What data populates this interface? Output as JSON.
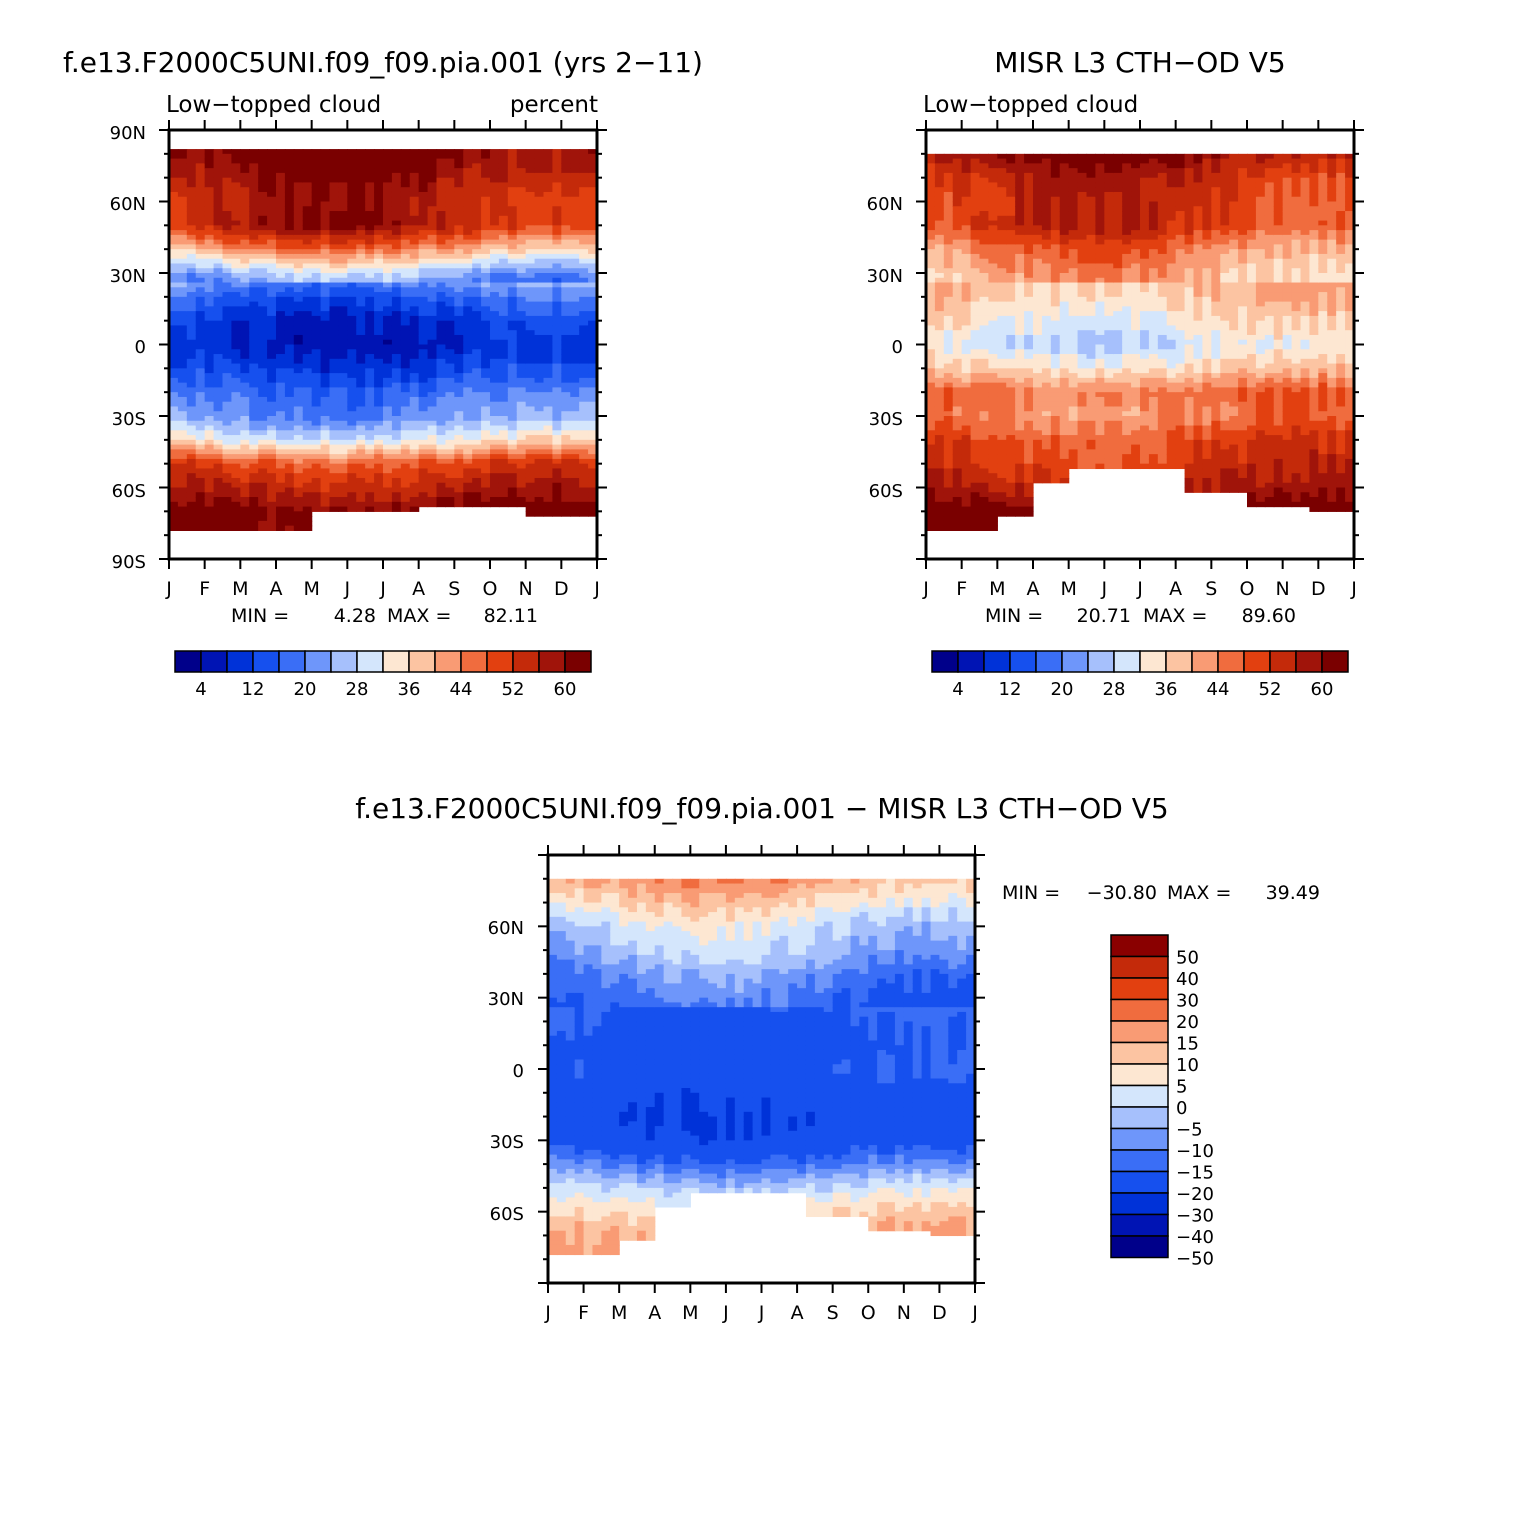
{
  "palette_abs": [
    "#00008a",
    "#0014b4",
    "#0032d8",
    "#1650ee",
    "#3a6ef6",
    "#6e96fa",
    "#a6c0fc",
    "#d4e6fc",
    "#fde7d2",
    "#fcc4a2",
    "#f99b74",
    "#f06c3e",
    "#e24010",
    "#c42a0a",
    "#a0140a",
    "#7a0000"
  ],
  "palette_diff": [
    "#00008a",
    "#0014b4",
    "#0032d8",
    "#1650ee",
    "#3a6ef6",
    "#6e96fa",
    "#a6c0fc",
    "#d4e6fc",
    "#fde7d2",
    "#fcc4a2",
    "#f99b74",
    "#f06c3e",
    "#e24010",
    "#c42a0a",
    "#8a0000"
  ],
  "chart_data": [
    {
      "type": "heatmap",
      "title": "f.e13.F2000C5UNI.f09_f09.pia.001 (yrs 2-11)",
      "left_subtitle": "Low-topped cloud",
      "right_subtitle": "percent",
      "x_ticks": [
        "J",
        "F",
        "M",
        "A",
        "M",
        "J",
        "J",
        "A",
        "S",
        "O",
        "N",
        "D",
        "J"
      ],
      "y_ticks": [
        "90N",
        "60N",
        "30N",
        "0",
        "30S",
        "60S",
        "90S"
      ],
      "ylim": [
        -90,
        90
      ],
      "min_label": "MIN =",
      "min_value": "4.28",
      "max_label": "MAX =",
      "max_value": "82.11",
      "colorbar_levels": [
        4,
        8,
        12,
        16,
        20,
        24,
        28,
        32,
        36,
        40,
        44,
        48,
        52,
        56,
        60
      ],
      "colorbar_labels": [
        "4",
        "12",
        "20",
        "28",
        "36",
        "44",
        "52",
        "60"
      ],
      "latitude_profile": {
        "lat": [
          80,
          70,
          60,
          50,
          40,
          30,
          20,
          10,
          0,
          -10,
          -20,
          -30,
          -40,
          -50,
          -60,
          -70,
          -78
        ],
        "value": [
          62,
          58,
          55,
          56,
          42,
          25,
          16,
          10,
          8,
          12,
          18,
          22,
          32,
          50,
          56,
          62,
          62
        ]
      }
    },
    {
      "type": "heatmap",
      "title": "MISR L3 CTH-OD V5",
      "left_subtitle": "Low-topped cloud",
      "x_ticks": [
        "J",
        "F",
        "M",
        "A",
        "M",
        "J",
        "J",
        "A",
        "S",
        "O",
        "N",
        "D",
        "J"
      ],
      "y_ticks": [
        "60N",
        "30N",
        "0",
        "30S",
        "60S"
      ],
      "ylim": [
        -90,
        90
      ],
      "min_label": "MIN =",
      "min_value": "20.71",
      "max_label": "MAX =",
      "max_value": "89.60",
      "colorbar_levels": [
        4,
        8,
        12,
        16,
        20,
        24,
        28,
        32,
        36,
        40,
        44,
        48,
        52,
        56,
        60
      ],
      "colorbar_labels": [
        "4",
        "12",
        "20",
        "28",
        "36",
        "44",
        "52",
        "60"
      ],
      "latitude_profile": {
        "lat": [
          80,
          70,
          60,
          50,
          40,
          30,
          20,
          10,
          0,
          -10,
          -20,
          -30,
          -40,
          -50,
          -60,
          -70,
          -78
        ],
        "value": [
          60,
          54,
          52,
          52,
          44,
          40,
          38,
          34,
          30,
          36,
          46,
          44,
          50,
          52,
          56,
          62,
          62
        ]
      }
    },
    {
      "type": "heatmap",
      "title": "f.e13.F2000C5UNI.f09_f09.pia.001 - MISR L3 CTH-OD V5",
      "x_ticks": [
        "J",
        "F",
        "M",
        "A",
        "M",
        "J",
        "J",
        "A",
        "S",
        "O",
        "N",
        "D",
        "J"
      ],
      "y_ticks": [
        "60N",
        "30N",
        "0",
        "30S",
        "60S"
      ],
      "ylim": [
        -90,
        90
      ],
      "min_label": "MIN =",
      "min_value": "-30.80",
      "max_label": "MAX =",
      "max_value": "39.49",
      "colorbar_labels": [
        "50",
        "40",
        "30",
        "20",
        "15",
        "10",
        "5",
        "0",
        "-5",
        "-10",
        "-15",
        "-20",
        "-30",
        "-40",
        "-50"
      ],
      "latitude_profile": {
        "lat": [
          80,
          70,
          60,
          50,
          40,
          30,
          20,
          10,
          0,
          -10,
          -20,
          -30,
          -40,
          -50,
          -60,
          -70,
          -78
        ],
        "value": [
          12,
          4,
          -4,
          -8,
          -14,
          -18,
          -22,
          -24,
          -22,
          -26,
          -28,
          -26,
          -16,
          -4,
          4,
          10,
          10
        ]
      }
    }
  ]
}
